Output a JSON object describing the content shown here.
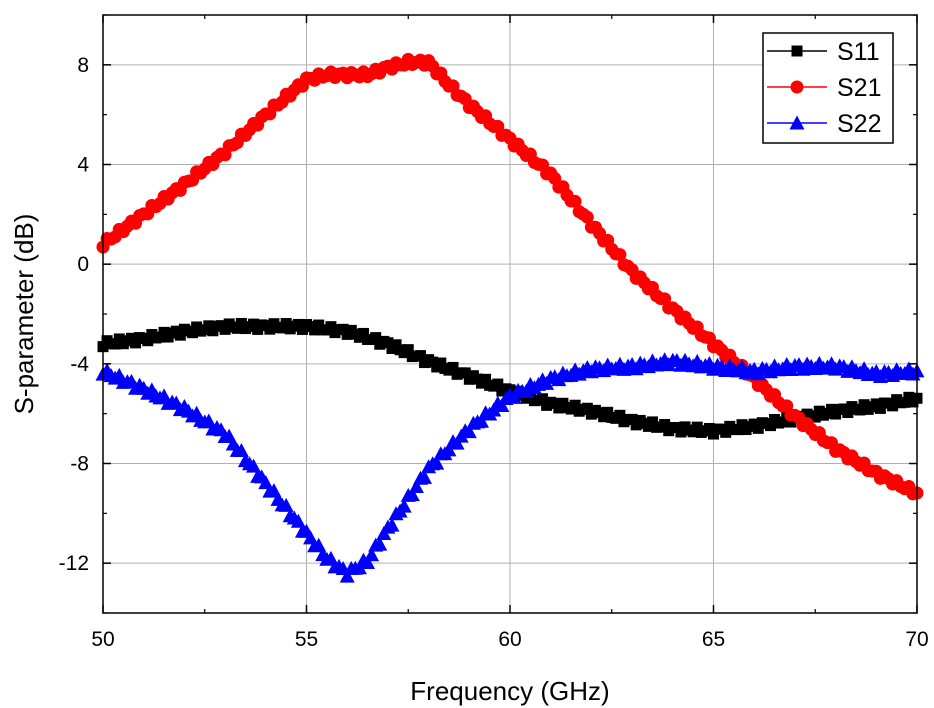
{
  "chart_data": {
    "type": "scatter",
    "title": "",
    "xlabel": "Frequency (GHz)",
    "ylabel": "S-parameter (dB)",
    "xlim": [
      50,
      70
    ],
    "ylim": [
      -14,
      10
    ],
    "x_ticks": [
      50,
      55,
      60,
      65,
      70
    ],
    "x_tick_labels": [
      "50",
      "55",
      "60",
      "65",
      "70"
    ],
    "y_ticks": [
      -12,
      -8,
      -4,
      0,
      4,
      8
    ],
    "y_tick_labels": [
      "-12",
      "-8",
      "-4",
      "0",
      "4",
      "8"
    ],
    "grid": true,
    "legend_position": "top-right",
    "series": [
      {
        "name": "S11",
        "color": "#000000",
        "marker": "square",
        "x": [
          50,
          51,
          52,
          53,
          54,
          55,
          56,
          57,
          58,
          59,
          60,
          61,
          62,
          63,
          64,
          65,
          66,
          67,
          68,
          69,
          70
        ],
        "y": [
          -3.2,
          -3.0,
          -2.7,
          -2.5,
          -2.5,
          -2.5,
          -2.7,
          -3.2,
          -3.9,
          -4.5,
          -5.1,
          -5.6,
          -5.9,
          -6.3,
          -6.6,
          -6.7,
          -6.5,
          -6.2,
          -5.9,
          -5.7,
          -5.4
        ]
      },
      {
        "name": "S21",
        "color": "#ff0000",
        "marker": "circle",
        "x": [
          50,
          51,
          52,
          53,
          54,
          55,
          55.5,
          56,
          56.5,
          57,
          57.5,
          58,
          58.5,
          59,
          60,
          61,
          62,
          63,
          64,
          65,
          66,
          67,
          68,
          69,
          70
        ],
        "y": [
          0.8,
          2.0,
          3.2,
          4.5,
          6.0,
          7.4,
          7.6,
          7.6,
          7.6,
          7.9,
          8.1,
          8.1,
          7.2,
          6.4,
          5.0,
          3.6,
          1.6,
          -0.3,
          -1.8,
          -3.2,
          -4.6,
          -6.1,
          -7.4,
          -8.4,
          -9.2
        ]
      },
      {
        "name": "S22",
        "color": "#0000ff",
        "marker": "triangle",
        "x": [
          50,
          51,
          52,
          53,
          54,
          55,
          55.5,
          56,
          56.5,
          57,
          58,
          59,
          60,
          61,
          62,
          63,
          64,
          65,
          66,
          67,
          68,
          69,
          70
        ],
        "y": [
          -4.3,
          -5.0,
          -5.8,
          -6.8,
          -8.8,
          -10.8,
          -11.8,
          -12.4,
          -11.9,
          -10.6,
          -8.2,
          -6.6,
          -5.3,
          -4.6,
          -4.2,
          -4.1,
          -3.9,
          -4.1,
          -4.3,
          -4.1,
          -4.1,
          -4.4,
          -4.3
        ]
      }
    ]
  }
}
